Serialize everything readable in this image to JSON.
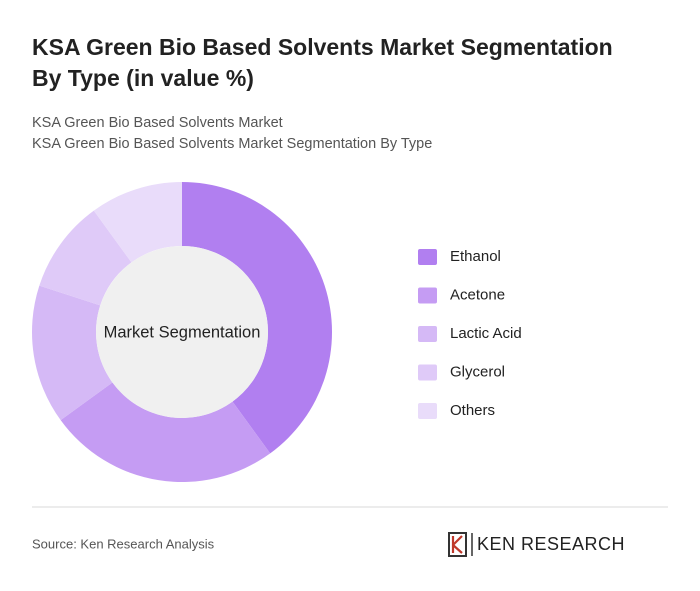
{
  "chart_data": {
    "type": "donut",
    "title": [
      "KSA Green Bio Based Solvents Market Segmentation",
      "By Type (in value %)"
    ],
    "subtitle": [
      "KSA Green Bio Based Solvents Market",
      "KSA Green Bio Based Solvents Market Segmentation By Type"
    ],
    "center_label": "Market Segmentation",
    "categories": [
      "Ethanol",
      "Acetone",
      "Lactic Acid",
      "Glycerol",
      "Others"
    ],
    "values": [
      40,
      25,
      15,
      10,
      10
    ],
    "colors": [
      "#b17ff0",
      "#c59cf3",
      "#d5b9f6",
      "#dfcaf8",
      "#e9dcfa"
    ],
    "legend": "right",
    "source": "Source: Ken Research Analysis",
    "logo": "KEN RESEARCH"
  }
}
